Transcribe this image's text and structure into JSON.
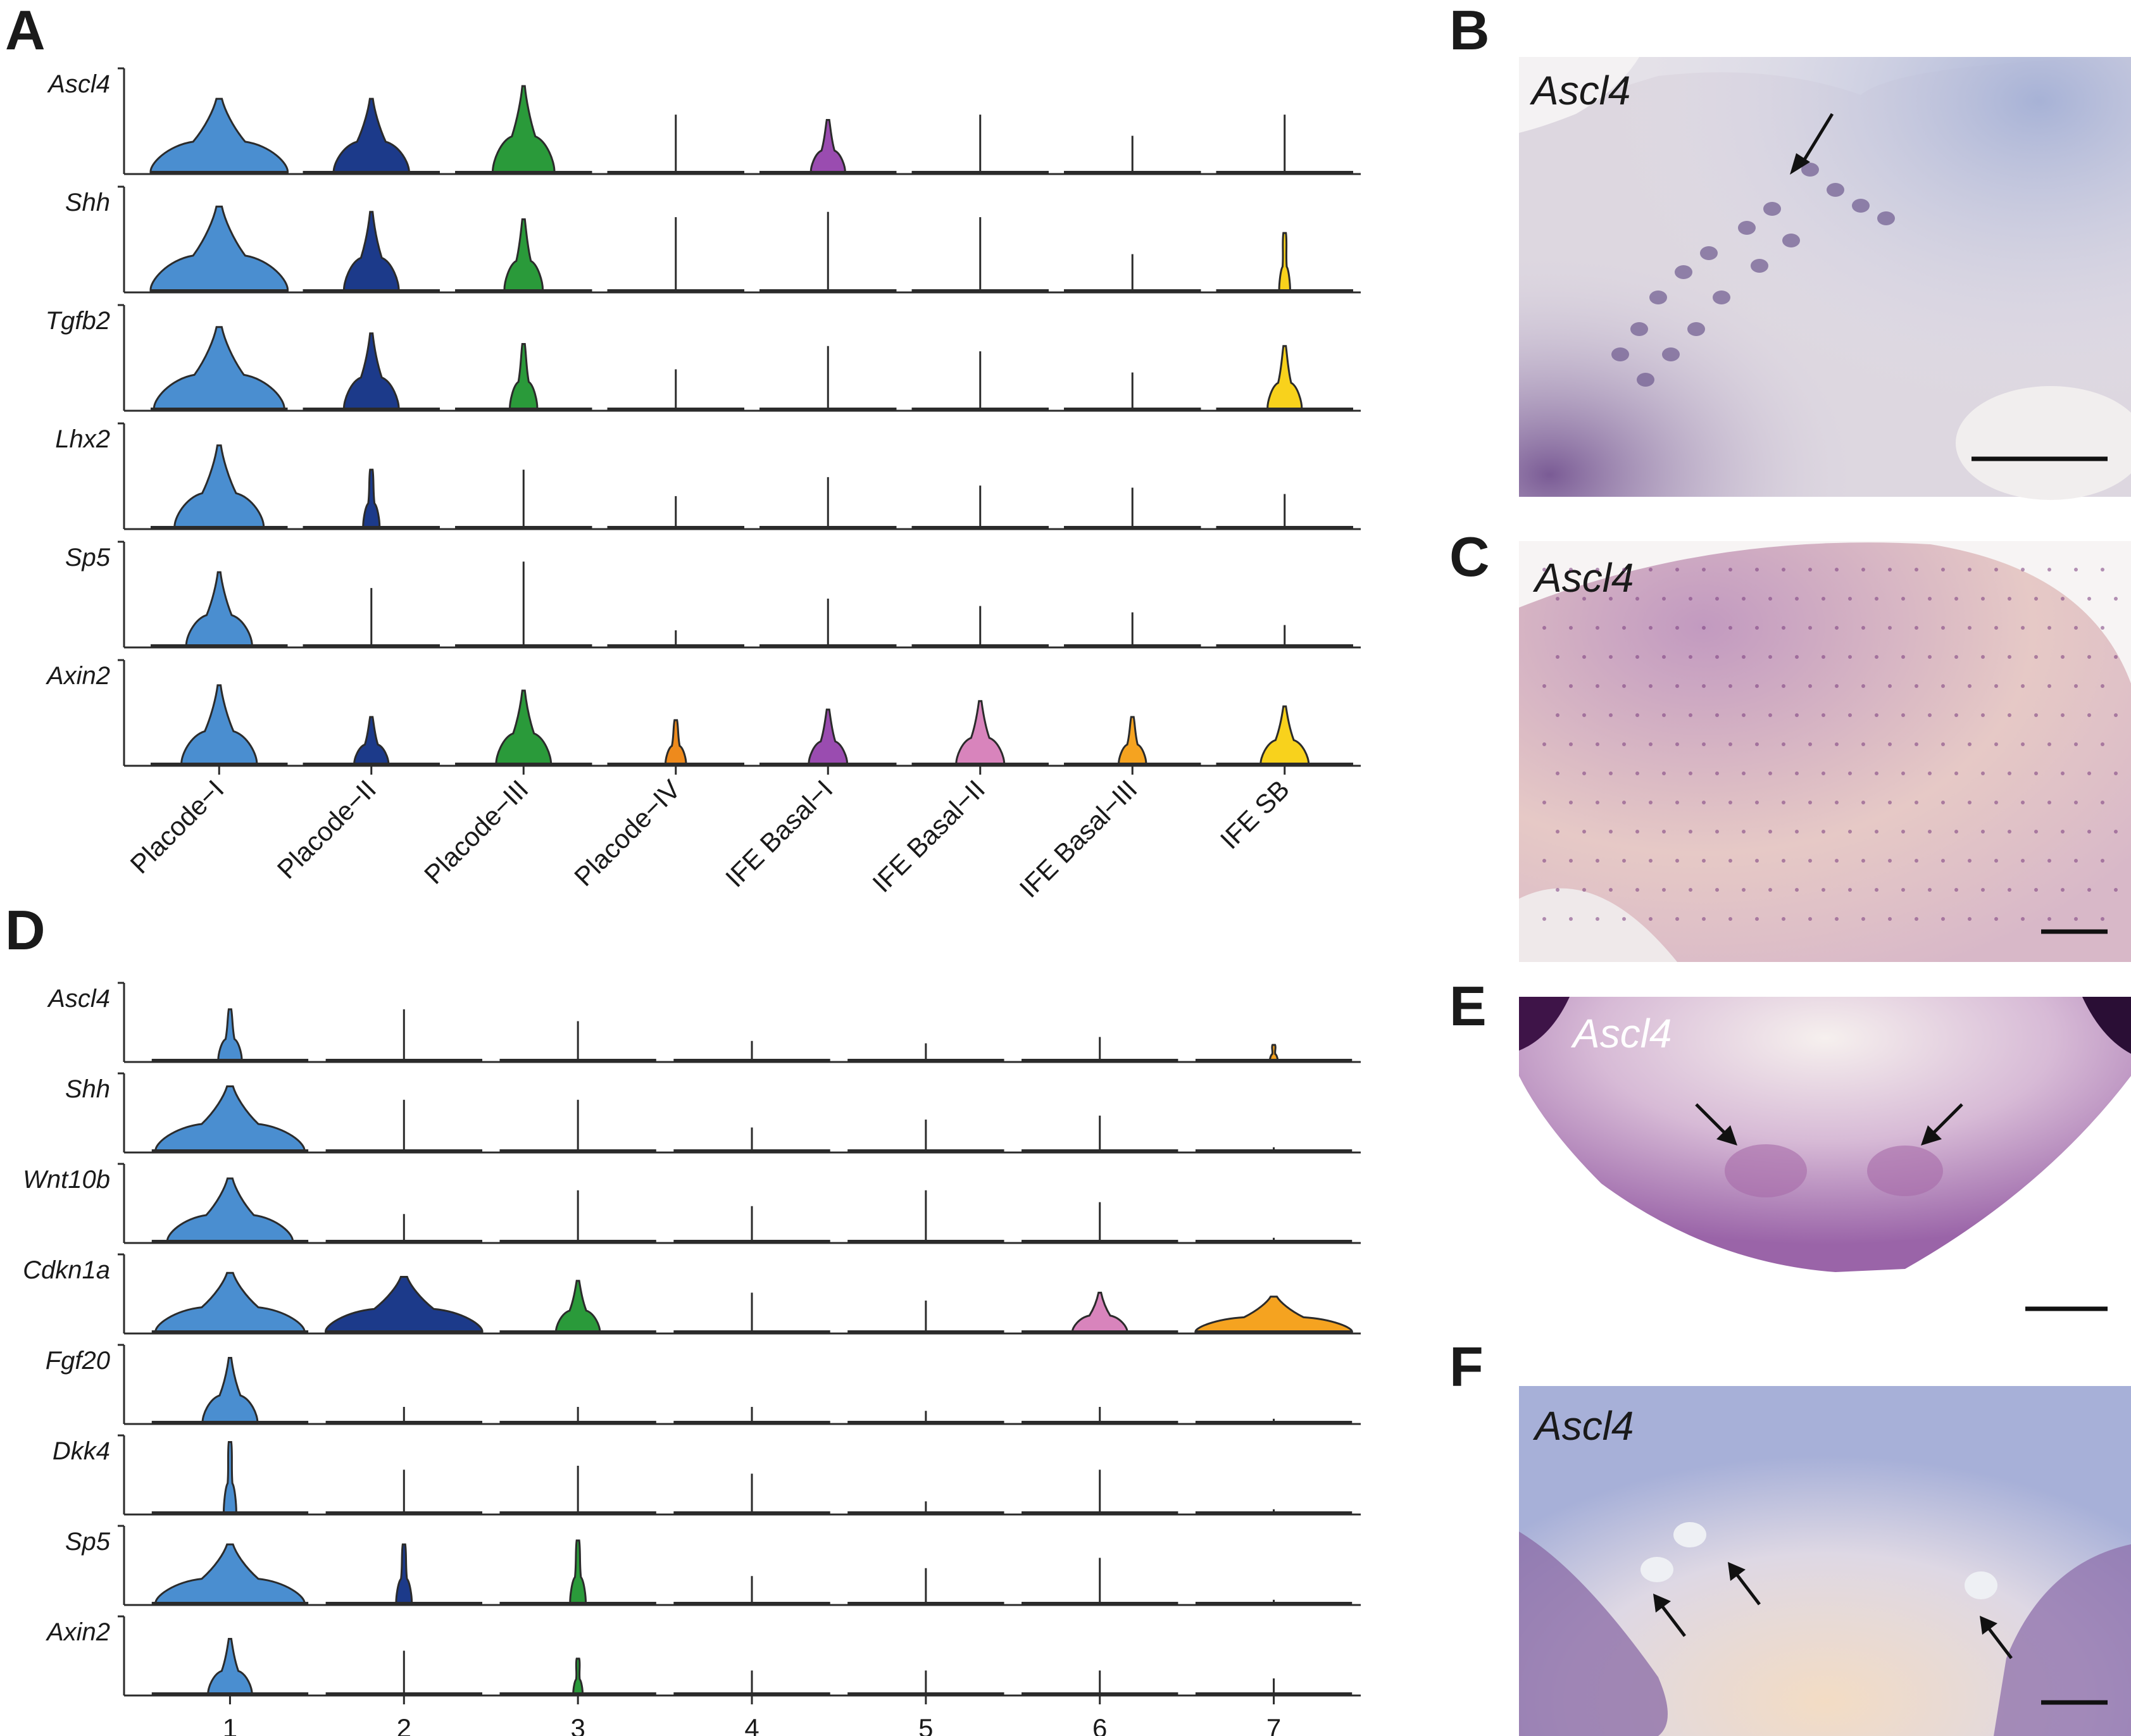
{
  "panel_letters": {
    "a": "A",
    "b": "B",
    "c": "C",
    "d": "D",
    "e": "E",
    "f": "F"
  },
  "photo_labels": {
    "b": "Ascl4",
    "c": "Ascl4",
    "e": "Ascl4",
    "f": "Ascl4"
  },
  "colors": {
    "c1": "#4a8ed0",
    "c2": "#1c3a8a",
    "c3": "#2a9a3a",
    "c4": "#ee8a1c",
    "c5": "#9a4cb0",
    "c6": "#d884bc",
    "c7": "#f5a320",
    "c8": "#f8d21c",
    "outline": "#2b2b2b"
  },
  "chart_data": [
    {
      "type": "violin",
      "panel": "A",
      "categories": [
        "Placode−I",
        "Placode−II",
        "Placode−III",
        "Placode−IV",
        "IFE Basal−I",
        "IFE Basal−II",
        "IFE Basal−III",
        "IFE SB"
      ],
      "genes": [
        "Ascl4",
        "Shh",
        "Tgfb2",
        "Lhx2",
        "Sp5",
        "Axin2"
      ],
      "relative_peak_height": [
        [
          0.7,
          0.7,
          0.82,
          0.55,
          0.5,
          0.55,
          0.35,
          0.55
        ],
        [
          0.8,
          0.75,
          0.68,
          0.7,
          0.75,
          0.7,
          0.35,
          0.55
        ],
        [
          0.78,
          0.72,
          0.62,
          0.38,
          0.6,
          0.55,
          0.35,
          0.6
        ],
        [
          0.78,
          0.55,
          0.55,
          0.3,
          0.48,
          0.4,
          0.38,
          0.32
        ],
        [
          0.7,
          0.55,
          0.8,
          0.15,
          0.45,
          0.38,
          0.32,
          0.2
        ],
        [
          0.75,
          0.45,
          0.7,
          0.42,
          0.52,
          0.6,
          0.45,
          0.55
        ]
      ],
      "relative_body_width": [
        [
          1.0,
          0.55,
          0.45,
          0.0,
          0.25,
          0.0,
          0.0,
          0.0
        ],
        [
          1.0,
          0.4,
          0.28,
          0.0,
          0.0,
          0.0,
          0.0,
          0.08
        ],
        [
          0.95,
          0.4,
          0.2,
          0.0,
          0.0,
          0.0,
          0.0,
          0.25
        ],
        [
          0.65,
          0.12,
          0.0,
          0.0,
          0.0,
          0.0,
          0.0,
          0.0
        ],
        [
          0.48,
          0.0,
          0.0,
          0.0,
          0.0,
          0.0,
          0.0,
          0.0
        ],
        [
          0.55,
          0.25,
          0.4,
          0.15,
          0.28,
          0.35,
          0.2,
          0.35
        ]
      ]
    },
    {
      "type": "violin",
      "panel": "D",
      "categories": [
        "1",
        "2",
        "3",
        "4",
        "5",
        "6",
        "7"
      ],
      "genes": [
        "Ascl4",
        "Shh",
        "Wnt10b",
        "Cdkn1a",
        "Fgf20",
        "Dkk4",
        "Sp5",
        "Axin2"
      ],
      "relative_peak_height": [
        [
          0.65,
          0.65,
          0.5,
          0.25,
          0.22,
          0.3,
          0.2
        ],
        [
          0.82,
          0.65,
          0.65,
          0.3,
          0.4,
          0.45,
          0.05
        ],
        [
          0.8,
          0.35,
          0.65,
          0.45,
          0.65,
          0.5,
          0.05
        ],
        [
          0.75,
          0.7,
          0.65,
          0.5,
          0.4,
          0.5,
          0.45
        ],
        [
          0.82,
          0.2,
          0.2,
          0.2,
          0.15,
          0.2,
          0.05
        ],
        [
          0.9,
          0.55,
          0.6,
          0.5,
          0.15,
          0.55,
          0.05
        ],
        [
          0.75,
          0.75,
          0.8,
          0.35,
          0.45,
          0.58,
          0.05
        ],
        [
          0.7,
          0.55,
          0.45,
          0.3,
          0.3,
          0.3,
          0.2
        ]
      ],
      "relative_body_width": [
        [
          0.15,
          0.0,
          0.0,
          0.0,
          0.0,
          0.0,
          0.05
        ],
        [
          0.95,
          0.0,
          0.0,
          0.0,
          0.0,
          0.0,
          0.0
        ],
        [
          0.8,
          0.0,
          0.0,
          0.0,
          0.0,
          0.0,
          0.0
        ],
        [
          0.95,
          1.0,
          0.28,
          0.0,
          0.0,
          0.35,
          1.0
        ],
        [
          0.35,
          0.0,
          0.0,
          0.0,
          0.0,
          0.0,
          0.0
        ],
        [
          0.08,
          0.0,
          0.0,
          0.0,
          0.0,
          0.0,
          0.0
        ],
        [
          0.95,
          0.1,
          0.1,
          0.0,
          0.0,
          0.0,
          0.0
        ],
        [
          0.28,
          0.0,
          0.06,
          0.0,
          0.0,
          0.0,
          0.0
        ]
      ]
    }
  ]
}
